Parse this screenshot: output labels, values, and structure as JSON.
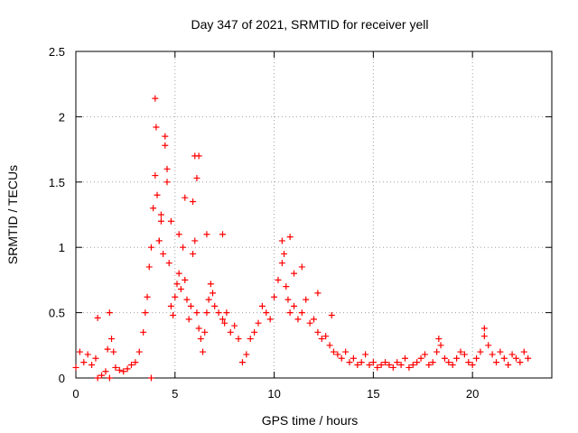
{
  "chart_data": {
    "type": "scatter",
    "title": "Day 347 of 2021, SRMTID for receiver yell",
    "xlabel": "GPS time / hours",
    "ylabel": "SRMTID / TECUs",
    "xlim": [
      0,
      24
    ],
    "ylim": [
      0,
      2.5
    ],
    "x_ticks": [
      0,
      5,
      10,
      15,
      20
    ],
    "y_ticks": [
      0,
      0.5,
      1,
      1.5,
      2,
      2.5
    ],
    "x_tick_labels": [
      "0",
      "5",
      "10",
      "15",
      "20"
    ],
    "y_tick_labels": [
      "0",
      "0.5",
      "1",
      "1.5",
      "2",
      "2.5"
    ],
    "grid": true,
    "marker": "+",
    "marker_color": "#ff0000",
    "series": [
      {
        "name": "SRMTID",
        "x": [
          0.0,
          0.2,
          0.4,
          0.6,
          0.8,
          1.0,
          1.1,
          1.3,
          1.5,
          1.6,
          1.7,
          1.8,
          1.9,
          2.0,
          2.2,
          2.4,
          2.6,
          2.8,
          3.0,
          3.2,
          3.4,
          3.5,
          3.6,
          3.7,
          3.8,
          3.9,
          4.0,
          4.05,
          4.1,
          4.2,
          4.3,
          4.4,
          4.5,
          4.6,
          4.7,
          4.8,
          4.9,
          5.0,
          5.1,
          5.2,
          5.3,
          5.4,
          5.5,
          5.6,
          5.7,
          5.8,
          5.9,
          6.0,
          6.1,
          6.2,
          6.3,
          6.4,
          6.5,
          6.6,
          6.7,
          6.8,
          6.9,
          7.0,
          7.2,
          7.4,
          7.5,
          7.6,
          7.8,
          8.0,
          8.2,
          8.4,
          8.6,
          8.8,
          9.0,
          9.2,
          9.4,
          9.6,
          9.8,
          10.0,
          10.2,
          10.4,
          10.5,
          10.6,
          10.7,
          10.8,
          11.0,
          11.2,
          11.4,
          11.6,
          11.8,
          12.0,
          12.2,
          12.4,
          12.6,
          12.8,
          13.0,
          13.2,
          13.4,
          13.6,
          13.8,
          14.0,
          14.2,
          14.4,
          14.6,
          14.8,
          15.0,
          15.2,
          15.4,
          15.6,
          15.8,
          16.0,
          16.2,
          16.4,
          16.6,
          16.8,
          17.0,
          17.2,
          17.4,
          17.6,
          17.8,
          18.0,
          18.2,
          18.4,
          18.6,
          18.8,
          19.0,
          19.2,
          19.4,
          19.6,
          19.8,
          20.0,
          20.2,
          20.4,
          20.6,
          20.8,
          21.0,
          21.2,
          21.4,
          21.6,
          21.8,
          22.0,
          22.2,
          22.4,
          22.6,
          22.8,
          4.0,
          4.3,
          4.5,
          4.6,
          4.8,
          5.2,
          5.5,
          6.0,
          6.1,
          6.2,
          6.6,
          7.4,
          10.4,
          10.8,
          11.0,
          11.4,
          12.2,
          12.9,
          18.3,
          20.6,
          1.1,
          1.7,
          3.8,
          4.2,
          5.9
        ],
        "y": [
          0.08,
          0.2,
          0.12,
          0.18,
          0.1,
          0.15,
          0.46,
          0.02,
          0.05,
          0.22,
          0.5,
          0.3,
          0.2,
          0.08,
          0.06,
          0.05,
          0.07,
          0.1,
          0.12,
          0.2,
          0.35,
          0.5,
          0.62,
          0.85,
          1.0,
          1.3,
          1.55,
          1.92,
          1.4,
          1.05,
          1.2,
          0.95,
          1.78,
          1.6,
          0.88,
          0.55,
          0.48,
          0.62,
          0.72,
          0.8,
          0.68,
          1.0,
          0.75,
          0.6,
          0.45,
          0.55,
          0.95,
          1.05,
          0.5,
          0.38,
          0.3,
          0.2,
          0.35,
          0.5,
          0.6,
          0.72,
          0.65,
          0.55,
          0.5,
          0.45,
          0.42,
          0.5,
          0.35,
          0.4,
          0.3,
          0.12,
          0.18,
          0.3,
          0.35,
          0.42,
          0.55,
          0.5,
          0.45,
          0.62,
          0.75,
          0.88,
          0.95,
          0.7,
          0.6,
          0.5,
          0.55,
          0.45,
          0.5,
          0.6,
          0.42,
          0.45,
          0.35,
          0.3,
          0.32,
          0.25,
          0.2,
          0.18,
          0.15,
          0.2,
          0.12,
          0.15,
          0.1,
          0.12,
          0.18,
          0.1,
          0.12,
          0.08,
          0.1,
          0.12,
          0.1,
          0.08,
          0.12,
          0.1,
          0.15,
          0.08,
          0.1,
          0.12,
          0.15,
          0.18,
          0.1,
          0.12,
          0.2,
          0.25,
          0.15,
          0.12,
          0.1,
          0.15,
          0.2,
          0.18,
          0.12,
          0.1,
          0.15,
          0.2,
          0.32,
          0.25,
          0.18,
          0.12,
          0.2,
          0.15,
          0.1,
          0.18,
          0.15,
          0.12,
          0.2,
          0.15,
          2.14,
          1.25,
          1.85,
          1.5,
          1.2,
          1.1,
          1.38,
          1.7,
          1.53,
          1.7,
          1.1,
          1.1,
          1.05,
          1.08,
          0.8,
          0.85,
          0.65,
          0.48,
          0.3,
          0.38,
          0.0,
          0.0,
          0.0,
          1.05,
          1.35
        ]
      }
    ]
  }
}
